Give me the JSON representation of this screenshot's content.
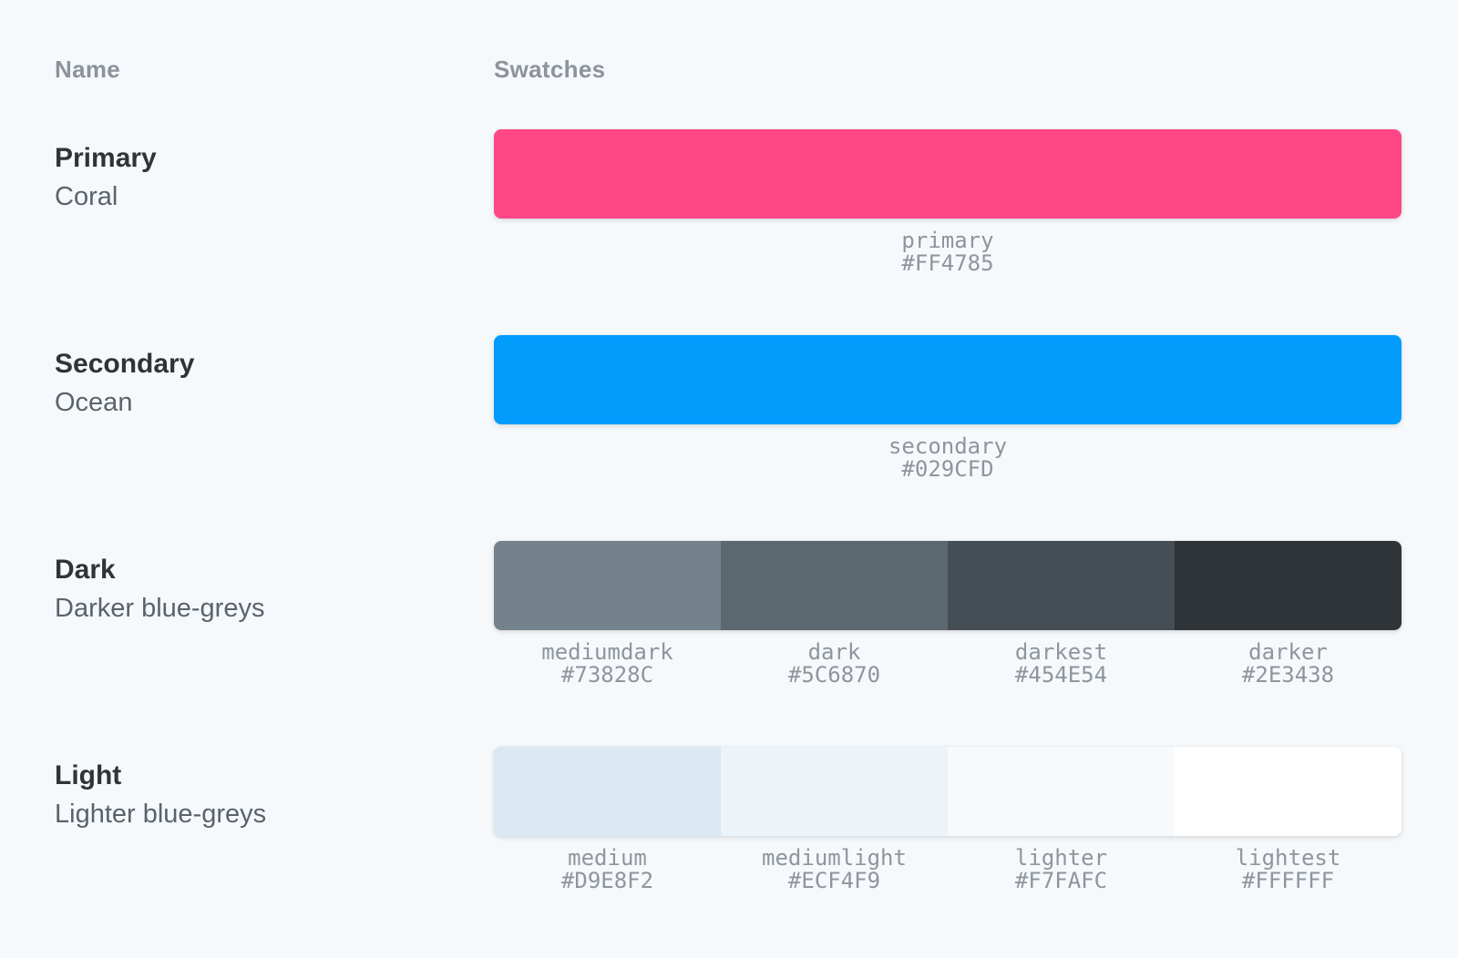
{
  "page": {
    "background_color": "#F6F9FC",
    "accent_colors": {
      "title_text": "#2E3438",
      "subtitle_text": "#5A636C",
      "header_text": "#8C939B",
      "mono_label_text": "#8E959D"
    }
  },
  "table": {
    "headers": {
      "name": "Name",
      "swatches": "Swatches"
    },
    "rows": [
      {
        "title": "Primary",
        "subtitle": "Coral",
        "swatches": [
          {
            "name": "primary",
            "hex": "#FF4785"
          }
        ]
      },
      {
        "title": "Secondary",
        "subtitle": "Ocean",
        "swatches": [
          {
            "name": "secondary",
            "hex": "#029CFD"
          }
        ]
      },
      {
        "title": "Dark",
        "subtitle": "Darker blue-greys",
        "swatches": [
          {
            "name": "mediumdark",
            "hex": "#73828C"
          },
          {
            "name": "dark",
            "hex": "#5C6870"
          },
          {
            "name": "darkest",
            "hex": "#454E54"
          },
          {
            "name": "darker",
            "hex": "#2E3438"
          }
        ]
      },
      {
        "title": "Light",
        "subtitle": "Lighter blue-greys",
        "swatches": [
          {
            "name": "medium",
            "hex": "#D9E8F2"
          },
          {
            "name": "mediumlight",
            "hex": "#ECF4F9"
          },
          {
            "name": "lighter",
            "hex": "#F7FAFC"
          },
          {
            "name": "lightest",
            "hex": "#FFFFFF"
          }
        ]
      }
    ]
  }
}
